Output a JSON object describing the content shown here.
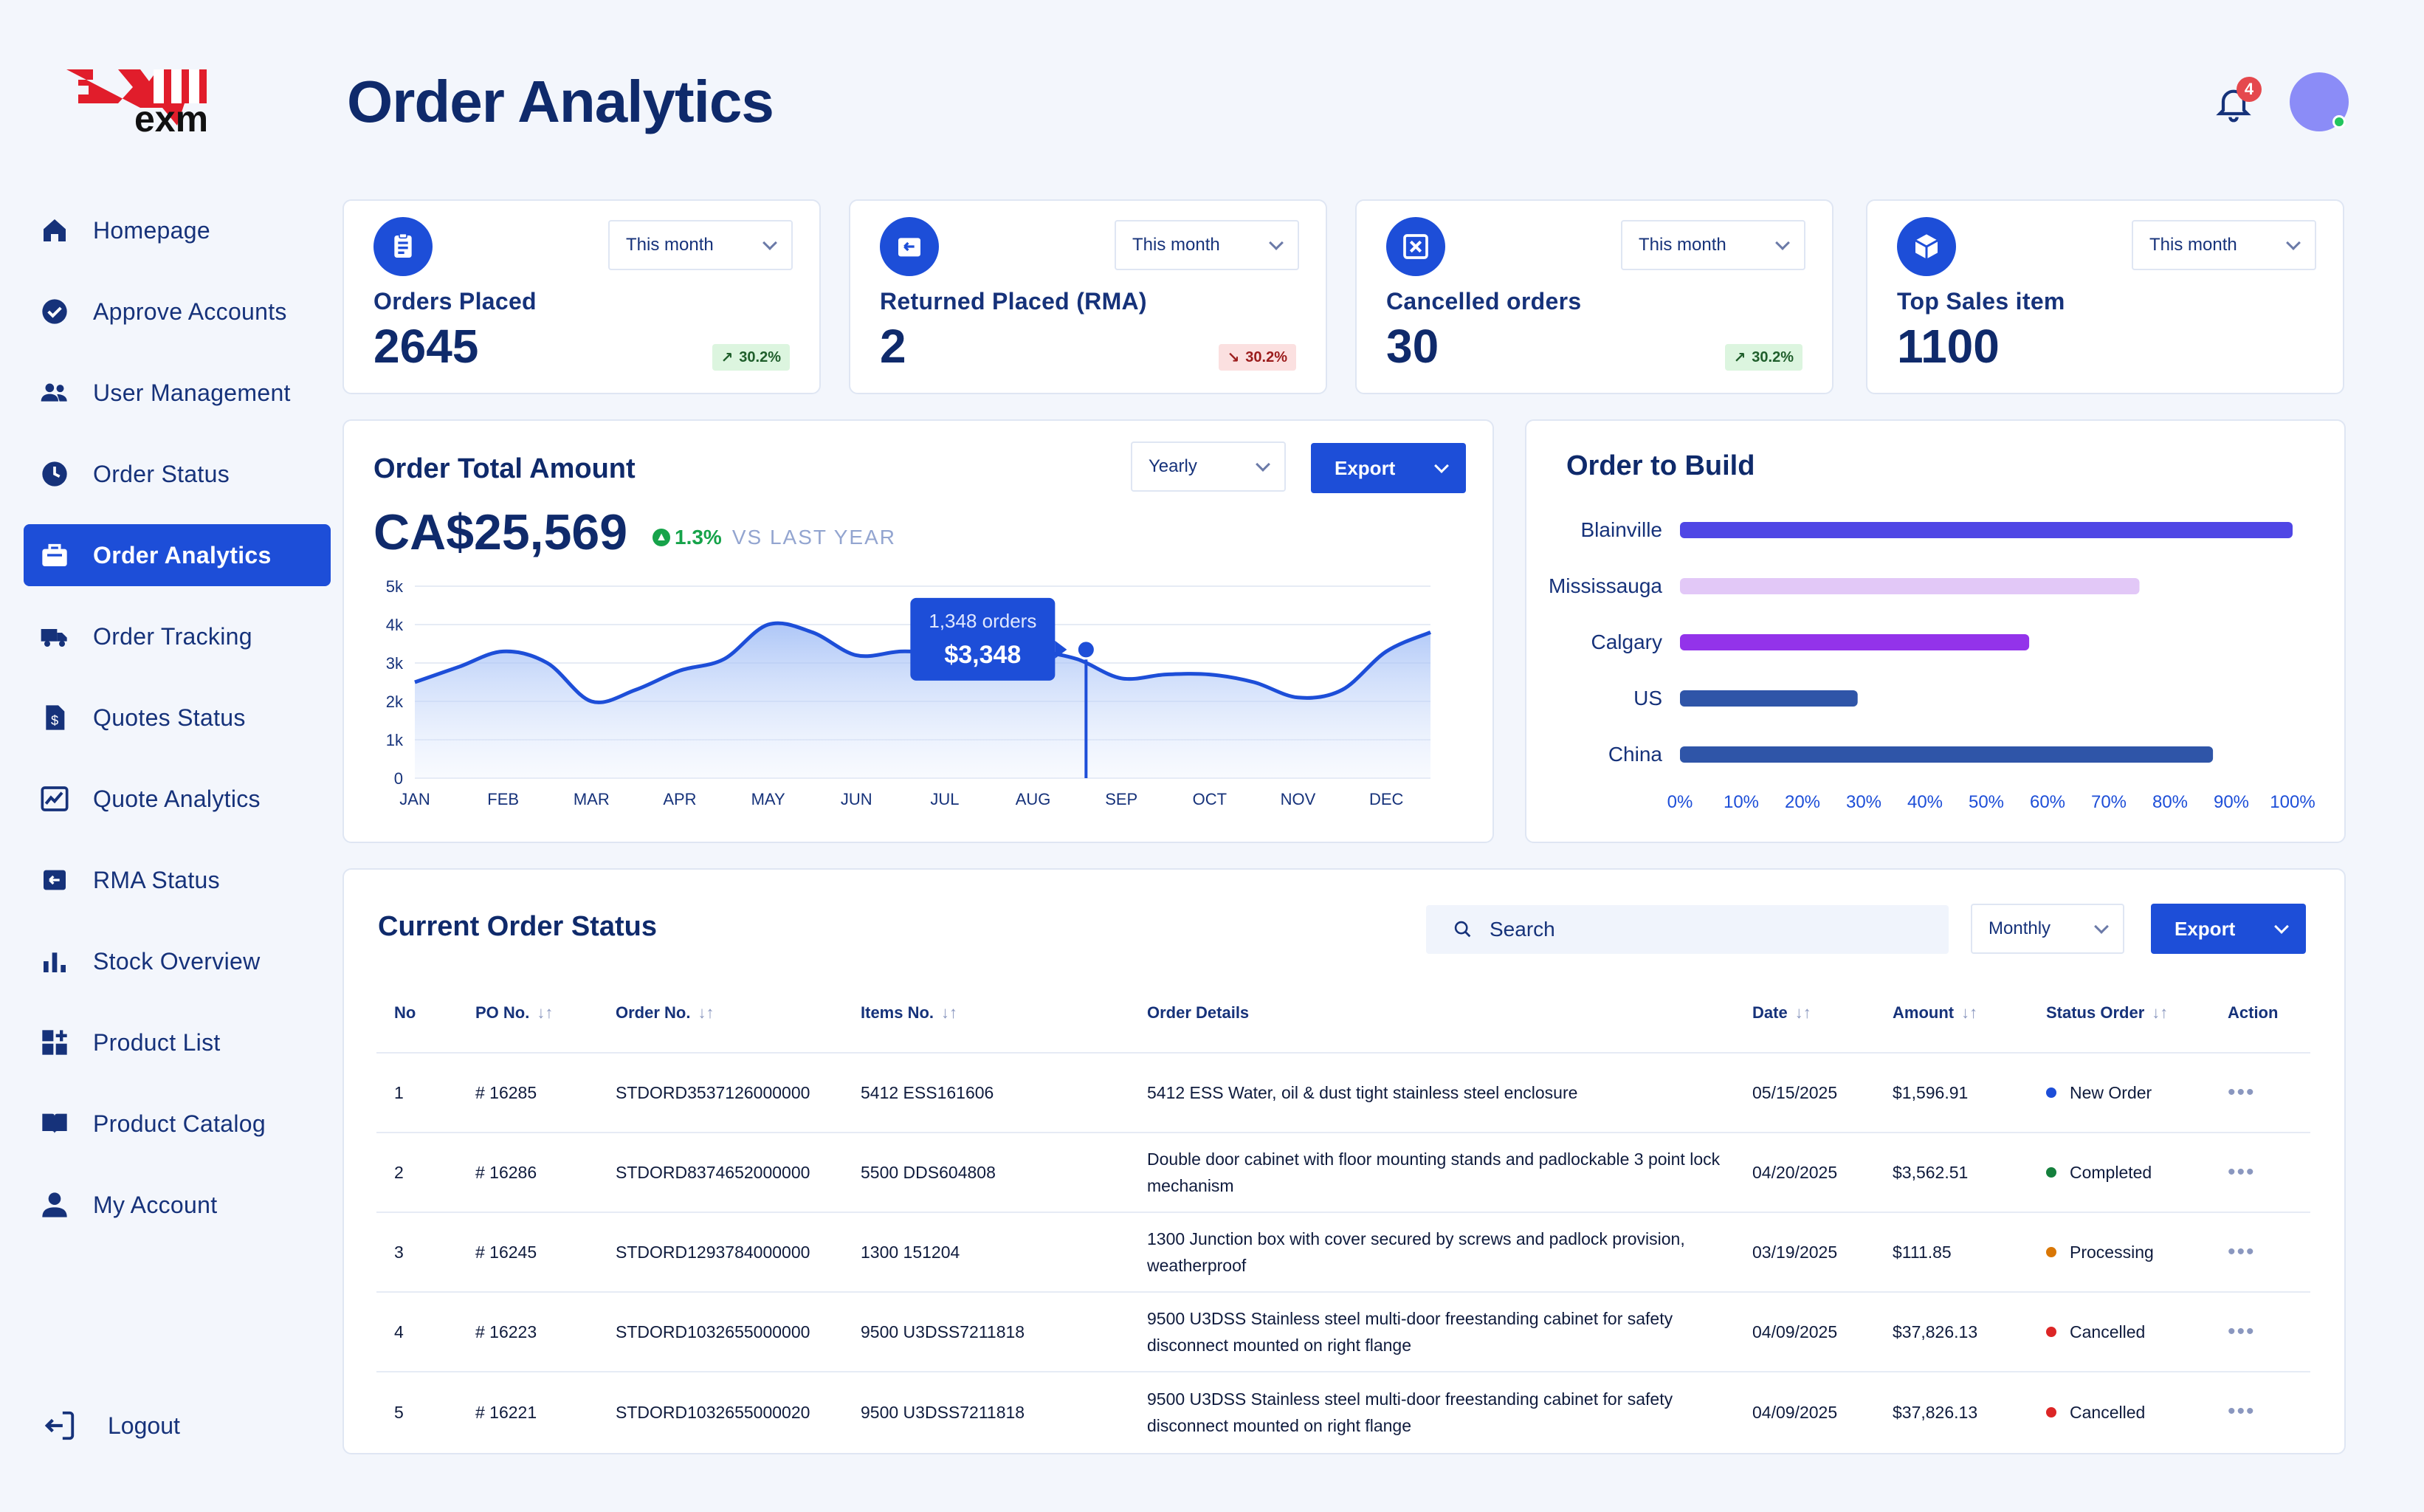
{
  "brand": {
    "logo_text": "exm"
  },
  "header": {
    "title": "Order Analytics",
    "notification_count": "4"
  },
  "sidebar": {
    "items": [
      {
        "label": "Homepage",
        "icon": "home-icon"
      },
      {
        "label": "Approve Accounts",
        "icon": "check-circle-icon"
      },
      {
        "label": "User Management",
        "icon": "users-icon"
      },
      {
        "label": "Order Status",
        "icon": "clock-icon"
      },
      {
        "label": "Order Analytics",
        "icon": "briefcase-icon",
        "active": true
      },
      {
        "label": "Order Tracking",
        "icon": "truck-icon"
      },
      {
        "label": "Quotes Status",
        "icon": "document-dollar-icon"
      },
      {
        "label": "Quote Analytics",
        "icon": "analytics-icon"
      },
      {
        "label": "RMA Status",
        "icon": "return-box-icon"
      },
      {
        "label": "Stock Overview",
        "icon": "bar-chart-icon"
      },
      {
        "label": "Product List",
        "icon": "grid-plus-icon"
      },
      {
        "label": "Product Catalog",
        "icon": "book-icon"
      },
      {
        "label": "My Account",
        "icon": "user-icon"
      }
    ],
    "logout_label": "Logout"
  },
  "stats": [
    {
      "label": "Orders Placed",
      "value": "2645",
      "period": "This month",
      "trend": "30.2%",
      "direction": "up",
      "icon": "clipboard-icon"
    },
    {
      "label": "Returned Placed (RMA)",
      "value": "2",
      "period": "This month",
      "trend": "30.2%",
      "direction": "down",
      "icon": "return-icon"
    },
    {
      "label": "Cancelled orders",
      "value": "30",
      "period": "This month",
      "trend": "30.2%",
      "direction": "up",
      "icon": "cancel-box-icon"
    },
    {
      "label": "Top Sales item",
      "value": "1100",
      "period": "This month",
      "icon": "cube-icon"
    }
  ],
  "order_total": {
    "title": "Order Total Amount",
    "period": "Yearly",
    "export_label": "Export",
    "amount": "CA$25,569",
    "change": "1.3%",
    "change_label": "VS LAST YEAR",
    "tooltip_orders": "1,348 orders",
    "tooltip_amount": "$3,348"
  },
  "order_to_build": {
    "title": "Order to Build"
  },
  "current_orders": {
    "title": "Current Order Status",
    "search_placeholder": "Search",
    "period": "Monthly",
    "export_label": "Export",
    "columns": [
      "No",
      "PO No.",
      "Order No.",
      "Items No.",
      "Order Details",
      "Date",
      "Amount",
      "Status Order",
      "Action"
    ],
    "rows": [
      {
        "no": "1",
        "po": "# 16285",
        "order": "STDORD3537126000000",
        "items": "5412 ESS161606",
        "details": "5412 ESS Water, oil & dust tight stainless steel enclosure",
        "date": "05/15/2025",
        "amount": "$1,596.91",
        "status": "New Order",
        "status_color": "#1d4ed8"
      },
      {
        "no": "2",
        "po": "# 16286",
        "order": "STDORD8374652000000",
        "items": "5500 DDS604808",
        "details": "Double door cabinet with floor mounting stands and padlockable 3 point lock mechanism",
        "date": "04/20/2025",
        "amount": "$3,562.51",
        "status": "Completed",
        "status_color": "#15803d"
      },
      {
        "no": "3",
        "po": "# 16245",
        "order": "STDORD1293784000000",
        "items": "1300 151204",
        "details": "1300 Junction box with cover secured by screws and padlock provision, weatherproof",
        "date": "03/19/2025",
        "amount": "$111.85",
        "status": "Processing",
        "status_color": "#d97706"
      },
      {
        "no": "4",
        "po": "# 16223",
        "order": "STDORD1032655000000",
        "items": "9500 U3DSS7211818",
        "details": "9500 U3DSS Stainless steel multi-door freestanding cabinet for safety disconnect mounted on right flange",
        "date": "04/09/2025",
        "amount": "$37,826.13",
        "status": "Cancelled",
        "status_color": "#dc2626"
      },
      {
        "no": "5",
        "po": "# 16221",
        "order": "STDORD1032655000020",
        "items": "9500 U3DSS7211818",
        "details": "9500 U3DSS Stainless steel multi-door freestanding cabinet for safety disconnect mounted on right flange",
        "date": "04/09/2025",
        "amount": "$37,826.13",
        "status": "Cancelled",
        "status_color": "#dc2626"
      }
    ]
  },
  "chart_data": [
    {
      "type": "area",
      "title": "Order Total Amount",
      "categories": [
        "JAN",
        "FEB",
        "MAR",
        "APR",
        "MAY",
        "JUN",
        "JUL",
        "AUG",
        "SEP",
        "OCT",
        "NOV",
        "DEC"
      ],
      "x": [
        0.0,
        0.5,
        1.0,
        1.5,
        2.0,
        2.5,
        3.0,
        3.5,
        4.0,
        4.5,
        5.0,
        5.5,
        6.0,
        6.5,
        7.0,
        7.5,
        8.0,
        8.5,
        9.0,
        9.5,
        10.0,
        10.5,
        11.0,
        11.5
      ],
      "values": [
        2500,
        2900,
        3300,
        3000,
        2000,
        2300,
        2800,
        3100,
        4000,
        3800,
        3200,
        3300,
        3300,
        3600,
        3348,
        3100,
        2600,
        2700,
        2700,
        2500,
        2100,
        2300,
        3300,
        3800
      ],
      "yticks": [
        "0",
        "1k",
        "2k",
        "3k",
        "4k",
        "5k"
      ],
      "ylim": [
        0,
        5000
      ],
      "grid": true,
      "highlight": {
        "x": 7.6,
        "value": 3348,
        "label_orders": "1,348 orders",
        "label_amount": "$3,348"
      },
      "color": "#1d4ed8"
    },
    {
      "type": "bar",
      "orientation": "horizontal",
      "title": "Order to Build",
      "categories": [
        "Blainville",
        "Mississauga",
        "Calgary",
        "US",
        "China"
      ],
      "values": [
        100,
        75,
        57,
        29,
        87
      ],
      "colors": [
        "#4f46e5",
        "#e2c8f7",
        "#9333ea",
        "#2f55a8",
        "#2f55a8"
      ],
      "xticks": [
        "0%",
        "10%",
        "20%",
        "30%",
        "40%",
        "50%",
        "60%",
        "70%",
        "80%",
        "90%",
        "100%"
      ],
      "xlim": [
        0,
        100
      ]
    }
  ]
}
